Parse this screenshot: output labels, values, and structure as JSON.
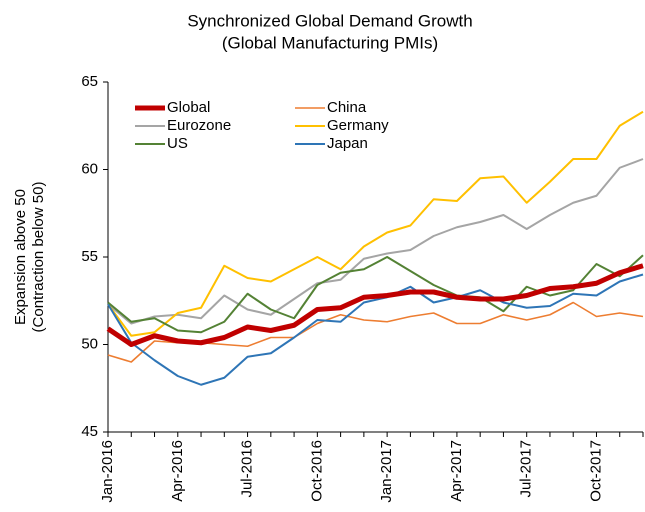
{
  "chart_data": {
    "type": "line",
    "title": "Synchronized Global Demand Growth",
    "subtitle": "(Global Manufacturing PMIs)",
    "ylabel": [
      "Expansion above 50",
      "(Contraction below 50)"
    ],
    "categories": [
      "Jan-2016",
      null,
      null,
      "Apr-2016",
      null,
      null,
      "Jul-2016",
      null,
      null,
      "Oct-2016",
      null,
      null,
      "Jan-2017",
      null,
      null,
      "Apr-2017",
      null,
      null,
      "Jul-2017",
      null,
      null,
      "Oct-2017",
      null,
      null
    ],
    "ylim": [
      45,
      65
    ],
    "yticks": [
      45,
      50,
      55,
      60,
      65
    ],
    "legend": "top-left",
    "series": [
      {
        "name": "Global",
        "color": "#c00000",
        "width": 5,
        "values": [
          50.9,
          50.0,
          50.5,
          50.2,
          50.1,
          50.4,
          51.0,
          50.8,
          51.1,
          52.0,
          52.1,
          52.7,
          52.8,
          53.0,
          53.0,
          52.7,
          52.6,
          52.6,
          52.8,
          53.2,
          53.3,
          53.5,
          54.1,
          54.5
        ]
      },
      {
        "name": "China",
        "color": "#ed7d31",
        "width": 1.6,
        "values": [
          49.4,
          49.0,
          50.2,
          50.1,
          50.1,
          50.0,
          49.9,
          50.4,
          50.4,
          51.2,
          51.7,
          51.4,
          51.3,
          51.6,
          51.8,
          51.2,
          51.2,
          51.7,
          51.4,
          51.7,
          52.4,
          51.6,
          51.8,
          51.6
        ]
      },
      {
        "name": "Eurozone",
        "color": "#a5a5a5",
        "width": 2,
        "values": [
          52.3,
          51.2,
          51.6,
          51.7,
          51.5,
          52.8,
          52.0,
          51.7,
          52.6,
          53.5,
          53.7,
          54.9,
          55.2,
          55.4,
          56.2,
          56.7,
          57.0,
          57.4,
          56.6,
          57.4,
          58.1,
          58.5,
          60.1,
          60.6
        ]
      },
      {
        "name": "Germany",
        "color": "#ffc000",
        "width": 2,
        "values": [
          52.3,
          50.5,
          50.7,
          51.8,
          52.1,
          54.5,
          53.8,
          53.6,
          54.3,
          55.0,
          54.3,
          55.6,
          56.4,
          56.8,
          58.3,
          58.2,
          59.5,
          59.6,
          58.1,
          59.3,
          60.6,
          60.6,
          62.5,
          63.3
        ]
      },
      {
        "name": "US",
        "color": "#548235",
        "width": 2,
        "values": [
          52.4,
          51.3,
          51.5,
          50.8,
          50.7,
          51.3,
          52.9,
          52.0,
          51.5,
          53.4,
          54.1,
          54.3,
          55.0,
          54.2,
          53.4,
          52.8,
          52.7,
          51.9,
          53.3,
          52.8,
          53.1,
          54.6,
          53.9,
          55.1
        ]
      },
      {
        "name": "Japan",
        "color": "#2e75b6",
        "width": 2,
        "values": [
          52.3,
          50.1,
          49.1,
          48.2,
          47.7,
          48.1,
          49.3,
          49.5,
          50.4,
          51.4,
          51.3,
          52.4,
          52.7,
          53.3,
          52.4,
          52.7,
          53.1,
          52.4,
          52.1,
          52.2,
          52.9,
          52.8,
          53.6,
          54.0
        ]
      }
    ]
  }
}
